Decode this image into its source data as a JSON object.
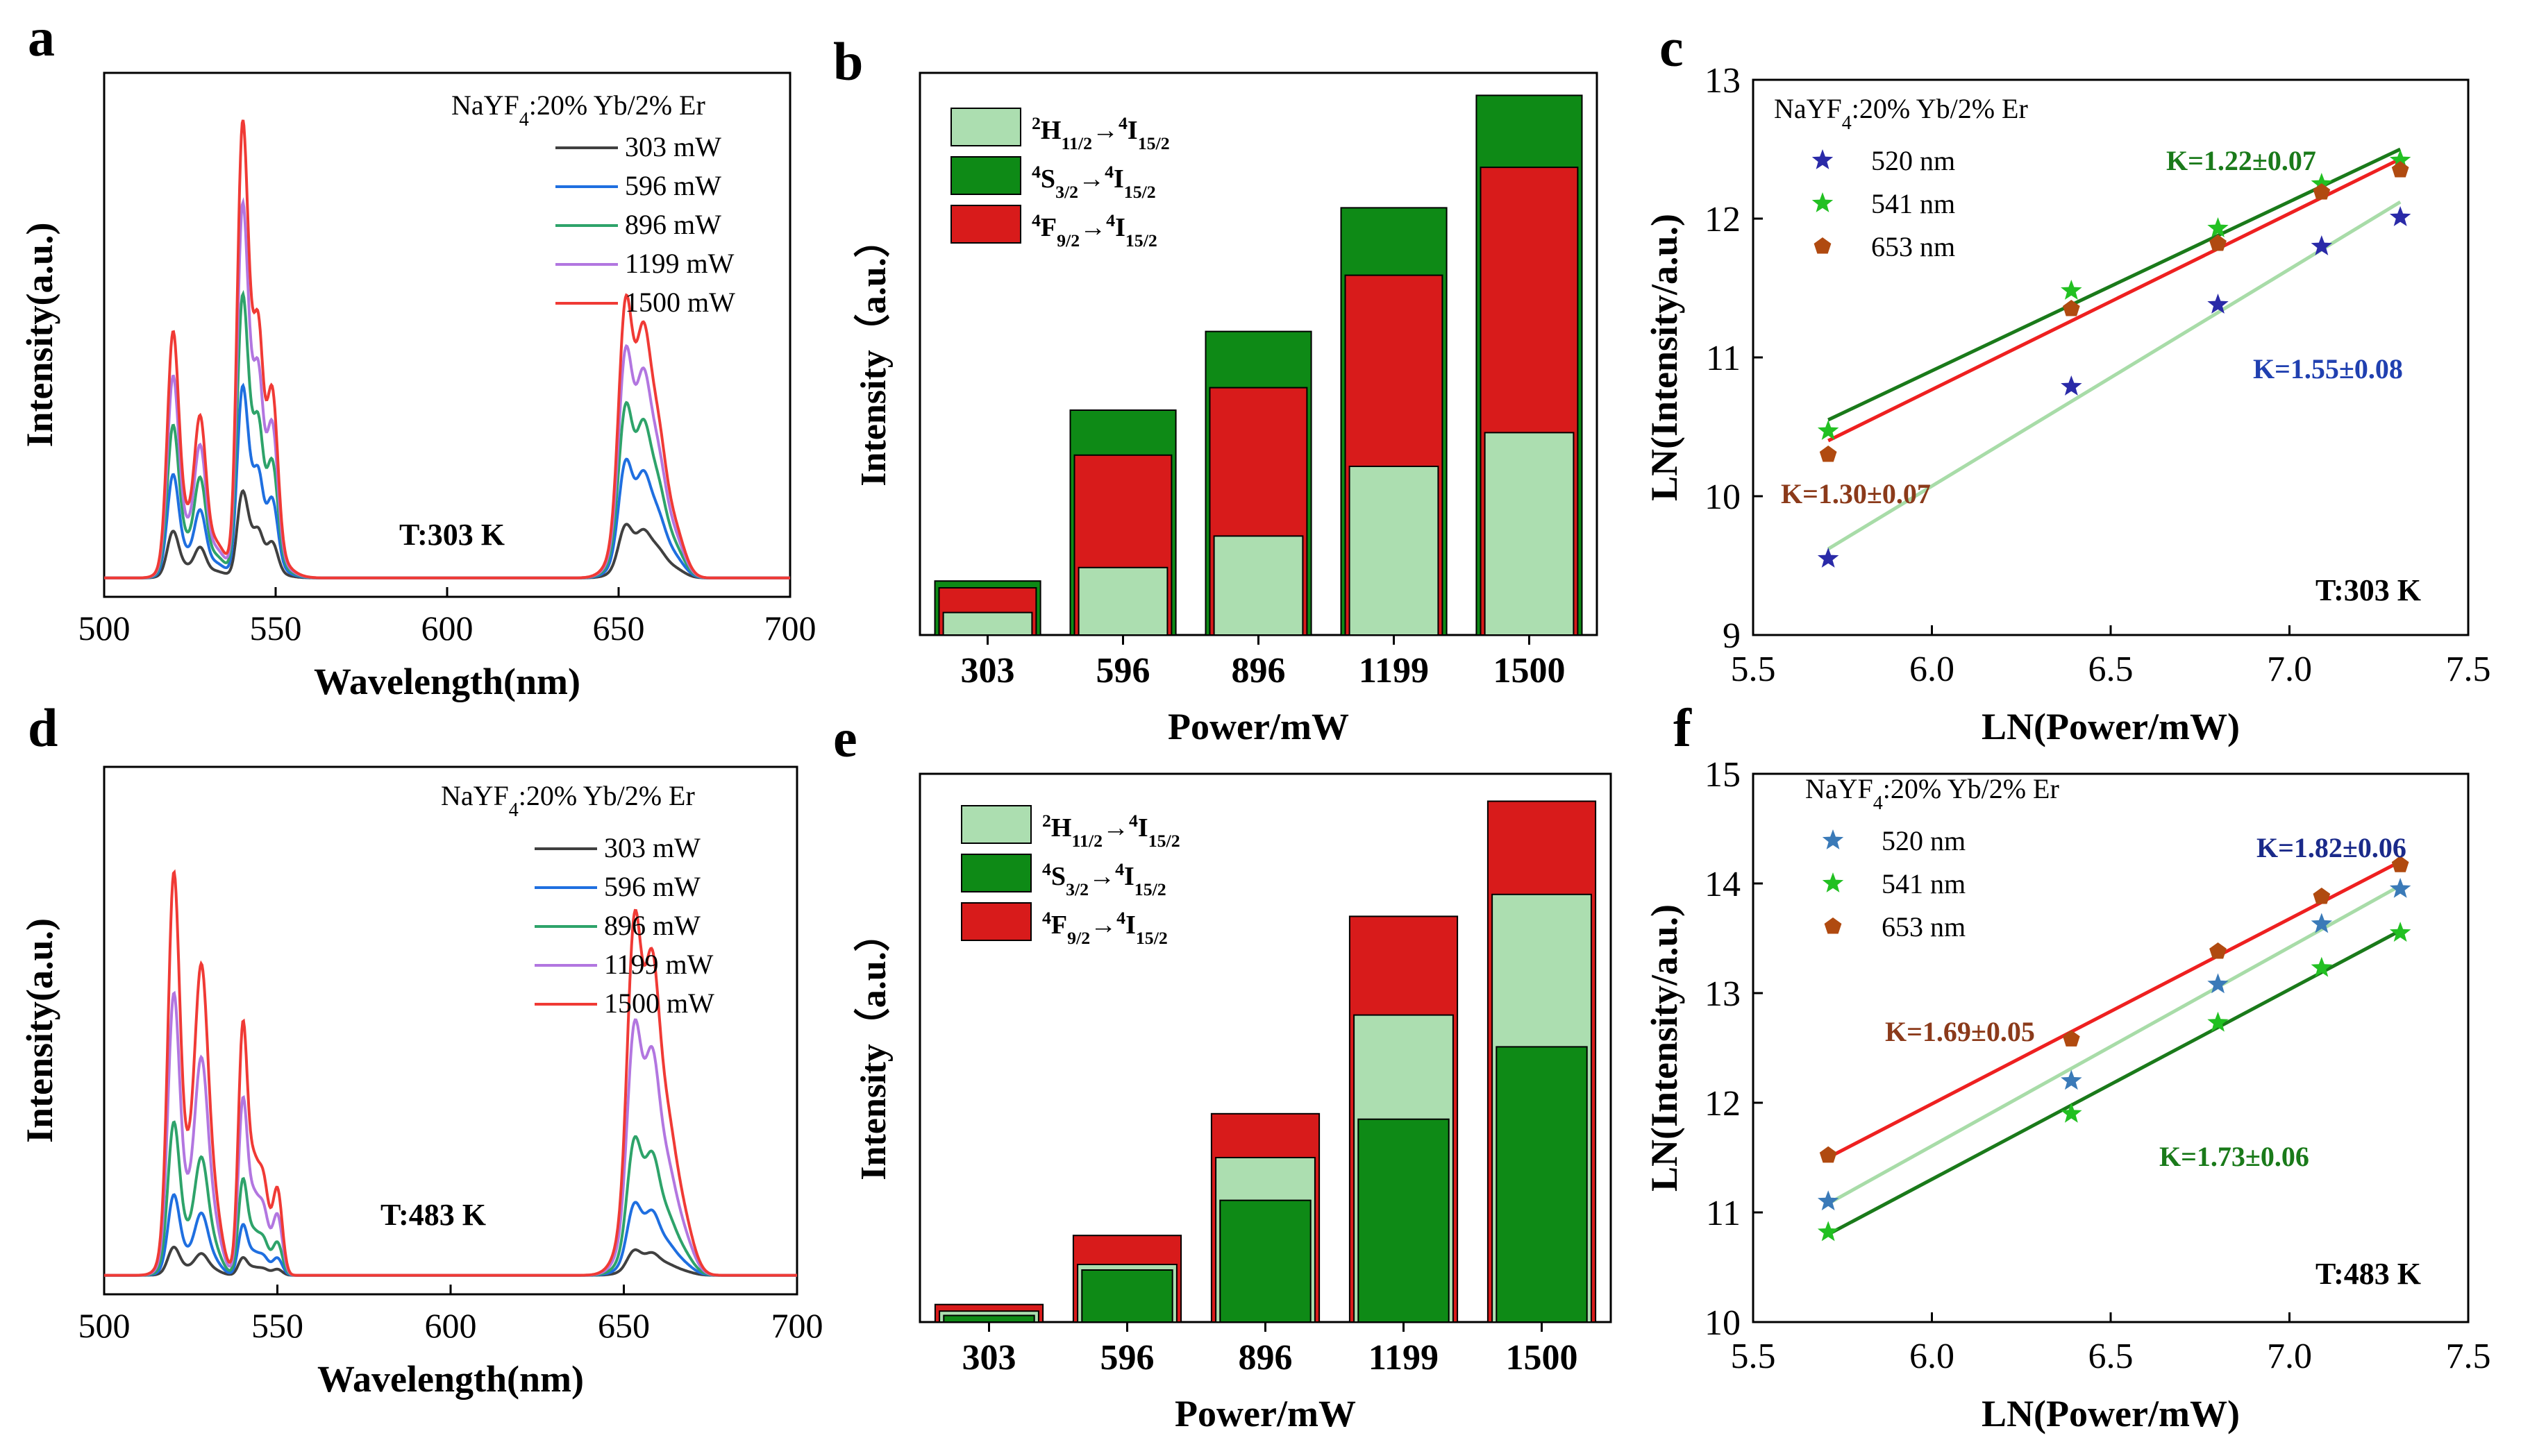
{
  "chart_data": [
    {
      "panel": "a",
      "type": "line",
      "title": "",
      "xlabel": "Wavelength(nm)",
      "ylabel": "Intensity(a.u.)",
      "xlim": [
        500,
        700
      ],
      "xticks": [
        "500",
        "550",
        "600",
        "650",
        "700"
      ],
      "material": [
        "NaYF",
        "4",
        ":20% Yb/2% Er"
      ],
      "annotation": "T:303 K",
      "legend": [
        "303   mW",
        "596   mW",
        "896   mW",
        "1199 mW",
        "1500 mW"
      ],
      "series": [
        {
          "name": "303 mW",
          "color": "#404040",
          "scale": 0.19,
          "green": 1.0,
          "red": 1.0
        },
        {
          "name": "596 mW",
          "color": "#1f6fe0",
          "scale": 0.42,
          "green": 1.0,
          "red": 1.0
        },
        {
          "name": "896 mW",
          "color": "#2ea36a",
          "scale": 0.62,
          "green": 1.0,
          "red": 1.0
        },
        {
          "name": "1199 mW",
          "color": "#b276e0",
          "scale": 0.82,
          "green": 1.0,
          "red": 1.0
        },
        {
          "name": "1500 mW",
          "color": "#f03a35",
          "scale": 1.0,
          "green": 1.0,
          "red": 1.0
        }
      ],
      "peaks_relative": [
        {
          "center": 520,
          "width": 1.6,
          "height": 0.58
        },
        {
          "center": 523,
          "width": 3.5,
          "height": 0.18
        },
        {
          "center": 528,
          "width": 1.6,
          "height": 0.36
        },
        {
          "center": 532,
          "width": 3.0,
          "height": 0.1
        },
        {
          "center": 540,
          "width": 1.4,
          "height": 1.0
        },
        {
          "center": 542,
          "width": 1.5,
          "height": 0.5
        },
        {
          "center": 545,
          "width": 1.4,
          "height": 0.55
        },
        {
          "center": 549,
          "width": 1.6,
          "height": 0.44
        },
        {
          "center": 546,
          "width": 5.0,
          "height": 0.12
        },
        {
          "center": 652,
          "width": 2.0,
          "height": 0.62
        },
        {
          "center": 654,
          "width": 4.5,
          "height": 0.18
        },
        {
          "center": 657,
          "width": 2.0,
          "height": 0.46
        },
        {
          "center": 661,
          "width": 2.5,
          "height": 0.36
        },
        {
          "center": 666,
          "width": 3.0,
          "height": 0.14
        }
      ]
    },
    {
      "panel": "b",
      "type": "bar",
      "title": "",
      "xlabel": "Power/mW",
      "ylabel": "Intensity（a.u.）",
      "categories": [
        "303",
        "596",
        "896",
        "1199",
        "1500"
      ],
      "series": [
        {
          "name": "2H11/2→4I15/2",
          "values": [
            20,
            60,
            88,
            150,
            180
          ],
          "color": "#acdeb0"
        },
        {
          "name": "4S3/2→4I15/2",
          "values": [
            48,
            200,
            270,
            380,
            480
          ],
          "color": "#0e8a16"
        },
        {
          "name": "4F9/2→4I15/2",
          "values": [
            42,
            160,
            220,
            320,
            416
          ],
          "color": "#d81b1b"
        }
      ],
      "legend_items": [
        {
          "a": "2",
          "b": "H",
          "c": "11/2",
          "d": "→",
          "e": "4",
          "f": "I",
          "g": "15/2"
        },
        {
          "a": "4",
          "b": "S",
          "c": "3/2",
          "d": "→",
          "e": "4",
          "f": "I",
          "g": "15/2"
        },
        {
          "a": "4",
          "b": "F",
          "c": "9/2",
          "d": "→",
          "e": "4",
          "f": "I",
          "g": "15/2"
        }
      ],
      "ylim": [
        0,
        500
      ]
    },
    {
      "panel": "c",
      "type": "scatter",
      "title": "",
      "xlabel": "LN(Power/mW)",
      "ylabel": "LN(Intensity/a.u.)",
      "xlim": [
        5.5,
        7.5
      ],
      "ylim": [
        9,
        13
      ],
      "xticks": [
        "5.5",
        "6.0",
        "6.5",
        "7.0",
        "7.5"
      ],
      "yticks": [
        "9",
        "10",
        "11",
        "12",
        "13"
      ],
      "material": [
        "NaYF",
        "4",
        ":20% Yb/2% Er"
      ],
      "annotation": "T:303 K",
      "x": [
        5.71,
        6.39,
        6.8,
        7.09,
        7.31
      ],
      "series": [
        {
          "name": "520 nm",
          "marker": "star",
          "color": "#2a2aa8",
          "values": [
            9.55,
            10.79,
            11.38,
            11.8,
            12.01
          ],
          "fit": [
            9.62,
            12.12
          ],
          "fit_color": "#a8dca8"
        },
        {
          "name": "541 nm",
          "marker": "star",
          "color": "#22c022",
          "values": [
            10.47,
            11.48,
            11.93,
            12.25,
            12.42
          ],
          "fit": [
            10.55,
            12.5
          ],
          "fit_color": "#1a7a1a"
        },
        {
          "name": "653 nm",
          "marker": "pentagon",
          "color": "#b04a10",
          "values": [
            10.3,
            11.35,
            11.82,
            12.19,
            12.35
          ],
          "fit": [
            10.4,
            12.43
          ],
          "fit_color": "#ee2020"
        }
      ],
      "slopes": [
        {
          "text": "K=1.22±0.07",
          "color": "#1a7a1a"
        },
        {
          "text": "K=1.55±0.08",
          "color": "#2040b0"
        },
        {
          "text": "K=1.30±0.07",
          "color": "#8b3a1a"
        }
      ]
    },
    {
      "panel": "d",
      "type": "line",
      "title": "",
      "xlabel": "Wavelength(nm)",
      "ylabel": "Intensity(a.u.)",
      "xlim": [
        500,
        700
      ],
      "xticks": [
        "500",
        "550",
        "600",
        "650",
        "700"
      ],
      "material": [
        "NaYF",
        "4",
        ":20% Yb/2% Er"
      ],
      "annotation": "T:483 K",
      "legend": [
        "303   mW",
        "596   mW",
        "896   mW",
        "1199 mW",
        "1500 mW"
      ],
      "series": [
        {
          "name": "303 mW",
          "color": "#404040",
          "scale": 0.07,
          "green": 1.0,
          "red": 1.0
        },
        {
          "name": "596 mW",
          "color": "#1f6fe0",
          "scale": 0.2,
          "green": 1.0,
          "red": 1.0
        },
        {
          "name": "896 mW",
          "color": "#2ea36a",
          "scale": 0.38,
          "green": 1.0,
          "red": 1.0
        },
        {
          "name": "1199 mW",
          "color": "#b276e0",
          "scale": 0.7,
          "green": 1.0,
          "red": 1.0
        },
        {
          "name": "1500 mW",
          "color": "#f03a35",
          "scale": 1.0,
          "green": 1.0,
          "red": 1.0
        }
      ],
      "peaks_relative": [
        {
          "center": 520,
          "width": 1.6,
          "height": 0.98
        },
        {
          "center": 523,
          "width": 3.5,
          "height": 0.35
        },
        {
          "center": 528,
          "width": 1.8,
          "height": 0.7
        },
        {
          "center": 531,
          "width": 2.5,
          "height": 0.25
        },
        {
          "center": 540,
          "width": 1.3,
          "height": 0.73
        },
        {
          "center": 543,
          "width": 1.5,
          "height": 0.3
        },
        {
          "center": 546,
          "width": 1.5,
          "height": 0.27
        },
        {
          "center": 550,
          "width": 1.4,
          "height": 0.26
        },
        {
          "center": 653,
          "width": 2.0,
          "height": 0.8
        },
        {
          "center": 655,
          "width": 4.5,
          "height": 0.3
        },
        {
          "center": 658,
          "width": 2.0,
          "height": 0.58
        },
        {
          "center": 662,
          "width": 2.8,
          "height": 0.38
        },
        {
          "center": 667,
          "width": 3.0,
          "height": 0.16
        }
      ]
    },
    {
      "panel": "e",
      "type": "bar",
      "title": "",
      "xlabel": "Power/mW",
      "ylabel": "Intensity（a.u.）",
      "categories": [
        "303",
        "596",
        "896",
        "1199",
        "1500"
      ],
      "series": [
        {
          "name": "2H11/2→4I15/2",
          "values": [
            20,
            105,
            300,
            560,
            780
          ],
          "color": "#acdeb0"
        },
        {
          "name": "4S3/2→4I15/2",
          "values": [
            12,
            95,
            222,
            370,
            502
          ],
          "color": "#0e8a16"
        },
        {
          "name": "4F9/2→4I15/2",
          "values": [
            32,
            158,
            380,
            740,
            950
          ],
          "color": "#d81b1b"
        }
      ],
      "legend_items": [
        {
          "a": "2",
          "b": "H",
          "c": "11/2",
          "d": "→",
          "e": "4",
          "f": "I",
          "g": "15/2"
        },
        {
          "a": "4",
          "b": "S",
          "c": "3/2",
          "d": "→",
          "e": "4",
          "f": "I",
          "g": "15/2"
        },
        {
          "a": "4",
          "b": "F",
          "c": "9/2",
          "d": "→",
          "e": "4",
          "f": "I",
          "g": "15/2"
        }
      ],
      "ylim": [
        0,
        1000
      ]
    },
    {
      "panel": "f",
      "type": "scatter",
      "title": "",
      "xlabel": "LN(Power/mW)",
      "ylabel": "LN(Intensity/a.u.)",
      "xlim": [
        5.5,
        7.5
      ],
      "ylim": [
        10,
        15
      ],
      "xticks": [
        "5.5",
        "6.0",
        "6.5",
        "7.0",
        "7.5"
      ],
      "yticks": [
        "10",
        "11",
        "12",
        "13",
        "14",
        "15"
      ],
      "material": [
        "NaYF",
        "4",
        ":20% Yb/2% Er"
      ],
      "annotation": "T:483 K",
      "x": [
        5.71,
        6.39,
        6.8,
        7.09,
        7.31
      ],
      "series": [
        {
          "name": "520 nm",
          "marker": "star",
          "color": "#3a7ab8",
          "values": [
            11.1,
            12.2,
            13.08,
            13.63,
            13.95
          ],
          "fit": [
            11.08,
            13.98
          ],
          "fit_color": "#a8dca8"
        },
        {
          "name": "541 nm",
          "marker": "star",
          "color": "#22c022",
          "values": [
            10.82,
            11.9,
            12.73,
            13.23,
            13.55
          ],
          "fit": [
            10.8,
            13.57
          ],
          "fit_color": "#1a7a1a"
        },
        {
          "name": "653 nm",
          "marker": "pentagon",
          "color": "#b04a10",
          "values": [
            11.52,
            12.58,
            13.38,
            13.88,
            14.17
          ],
          "fit": [
            11.5,
            14.2
          ],
          "fit_color": "#ee2020"
        }
      ],
      "slopes": [
        {
          "text": "K=1.82±0.06",
          "color": "#1a2a8a"
        },
        {
          "text": "K=1.69±0.05",
          "color": "#8b3a1a"
        },
        {
          "text": "K=1.73±0.06",
          "color": "#1a7a1a"
        }
      ]
    }
  ]
}
